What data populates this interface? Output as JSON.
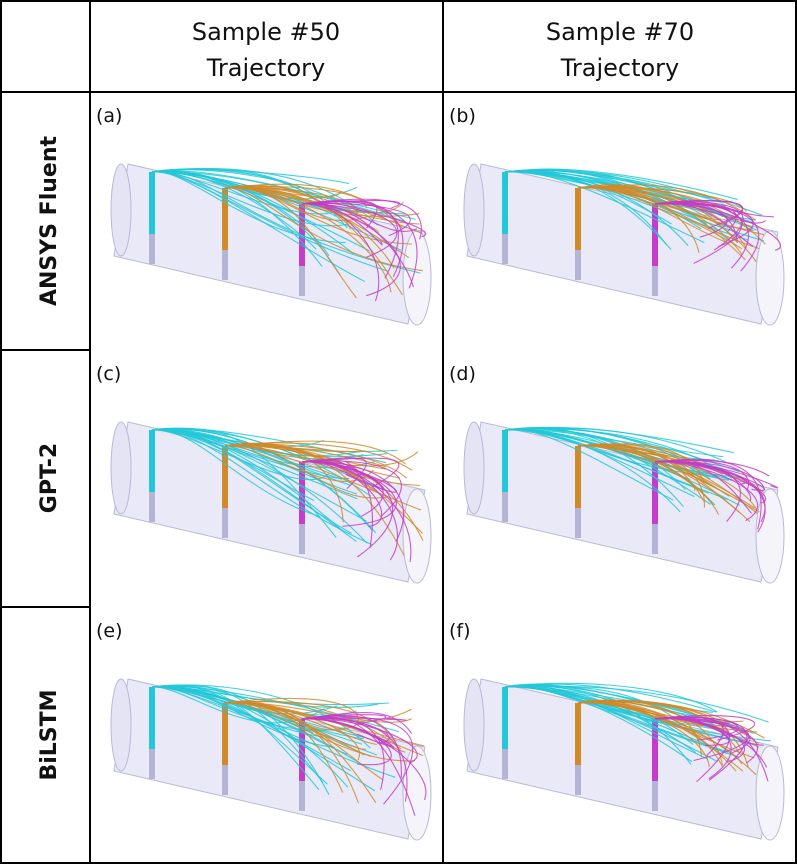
{
  "header": {
    "col1": {
      "line1": "Sample #50",
      "line2": "Trajectory"
    },
    "col2": {
      "line1": "Sample #70",
      "line2": "Trajectory"
    }
  },
  "rows": [
    {
      "label": "ANSYS Fluent"
    },
    {
      "label": "GPT-2"
    },
    {
      "label": "BiLSTM"
    }
  ],
  "panels": [
    {
      "letter": "(a)"
    },
    {
      "letter": "(b)"
    },
    {
      "letter": "(c)"
    },
    {
      "letter": "(d)"
    },
    {
      "letter": "(e)"
    },
    {
      "letter": "(f)"
    }
  ],
  "colors": {
    "inlet1": "#22c8d8",
    "inlet2": "#d08a2a",
    "inlet3": "#c43cc8",
    "cylinder": "#cfcfee"
  }
}
